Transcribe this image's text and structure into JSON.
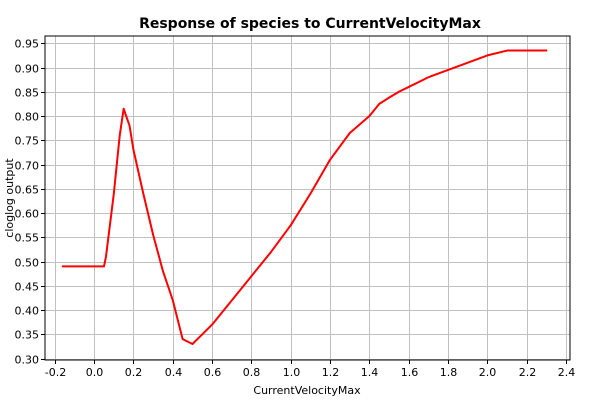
{
  "chart_data": {
    "type": "line",
    "title": "Response of species to CurrentVelocityMax",
    "xlabel": "CurrentVelocityMax",
    "ylabel": "cloglog output",
    "xlim": [
      -0.25,
      2.42
    ],
    "ylim": [
      0.297,
      0.965
    ],
    "xticks": [
      -0.2,
      0.0,
      0.2,
      0.4,
      0.6,
      0.8,
      1.0,
      1.2,
      1.4,
      1.6,
      1.8,
      2.0,
      2.2,
      2.4
    ],
    "xtick_labels": [
      "-0.2",
      "0.0",
      "0.2",
      "0.4",
      "0.6",
      "0.8",
      "1.0",
      "1.2",
      "1.4",
      "1.6",
      "1.8",
      "2.0",
      "2.2",
      "2.4"
    ],
    "yticks": [
      0.3,
      0.35,
      0.4,
      0.45,
      0.5,
      0.55,
      0.6,
      0.65,
      0.7,
      0.75,
      0.8,
      0.85,
      0.9,
      0.95
    ],
    "ytick_labels": [
      "0.30",
      "0.35",
      "0.40",
      "0.45",
      "0.50",
      "0.55",
      "0.60",
      "0.65",
      "0.70",
      "0.75",
      "0.80",
      "0.85",
      "0.90",
      "0.95"
    ],
    "grid": true,
    "series": [
      {
        "name": "response",
        "color": "#ff0000",
        "x": [
          -0.16,
          0.05,
          0.06,
          0.1,
          0.13,
          0.15,
          0.18,
          0.2,
          0.25,
          0.3,
          0.35,
          0.4,
          0.45,
          0.5,
          0.55,
          0.6,
          0.7,
          0.8,
          0.9,
          1.0,
          1.1,
          1.2,
          1.3,
          1.4,
          1.45,
          1.5,
          1.55,
          1.6,
          1.7,
          1.8,
          1.9,
          2.0,
          2.1,
          2.2,
          2.3
        ],
        "y": [
          0.49,
          0.49,
          0.51,
          0.64,
          0.76,
          0.815,
          0.78,
          0.73,
          0.64,
          0.555,
          0.48,
          0.42,
          0.34,
          0.33,
          0.35,
          0.37,
          0.42,
          0.47,
          0.52,
          0.575,
          0.64,
          0.71,
          0.765,
          0.8,
          0.825,
          0.838,
          0.85,
          0.86,
          0.88,
          0.895,
          0.91,
          0.925,
          0.935,
          0.935,
          0.935
        ]
      }
    ]
  }
}
